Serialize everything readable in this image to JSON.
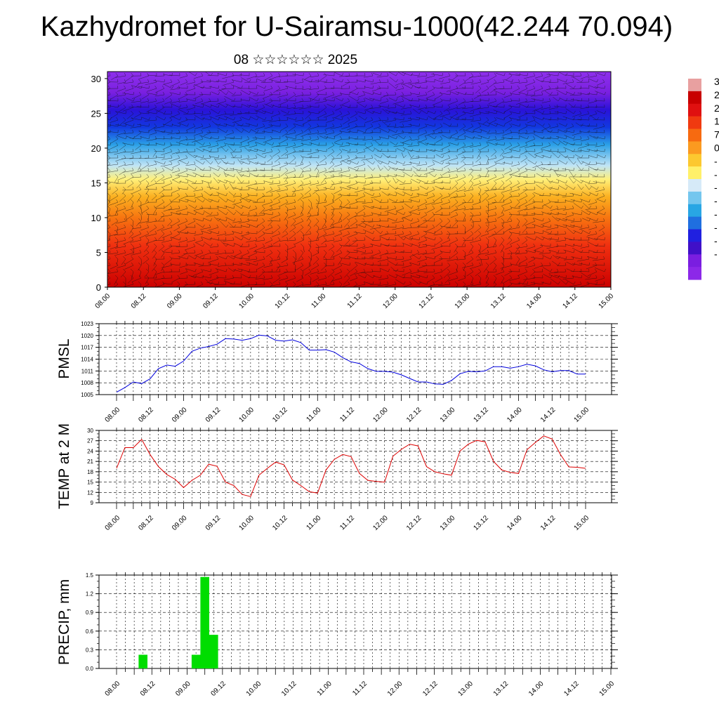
{
  "header": {
    "title": "Kazhydromet for U-Sairamsu-1000(42.244 70.094)",
    "subtitle": "08 ☆☆☆☆☆☆ 2025"
  },
  "time_labels": [
    "08.00",
    "08.12",
    "09.00",
    "09.12",
    "10.00",
    "10.12",
    "11.00",
    "11.12",
    "12.00",
    "12.12",
    "13.00",
    "13.12",
    "14.00",
    "14.12",
    "15.00"
  ],
  "colorbar": {
    "labels": [
      "3",
      "2",
      "2",
      "1",
      "7",
      "0",
      "-",
      "-",
      "-",
      "-",
      "-",
      "-",
      "-",
      "-"
    ],
    "colors": [
      "#e8a0a0",
      "#c80000",
      "#e01010",
      "#f03a10",
      "#f76a10",
      "#fb9a20",
      "#fcc830",
      "#fff06a",
      "#d6eaf8",
      "#74c6ee",
      "#28a6e4",
      "#1f6fe0",
      "#2020e0",
      "#4010c8",
      "#7a1ee0",
      "#8c28e8"
    ]
  },
  "chart_data": [
    {
      "type": "heatmap",
      "title": "",
      "x_categories": [
        "08.00",
        "08.12",
        "09.00",
        "09.12",
        "10.00",
        "10.12",
        "11.00",
        "11.12",
        "12.00",
        "12.12",
        "13.00",
        "13.12",
        "14.00",
        "14.12",
        "15.00"
      ],
      "ylim": [
        0,
        31
      ],
      "y_ticks": [
        0,
        5,
        10,
        15,
        20,
        25,
        30
      ],
      "vertical_profile": [
        {
          "level": 0,
          "color": "#cc0000"
        },
        {
          "level": 6,
          "color": "#f03010"
        },
        {
          "level": 10,
          "color": "#f77510"
        },
        {
          "level": 13,
          "color": "#fbb020"
        },
        {
          "level": 15.5,
          "color": "#fff07a"
        },
        {
          "level": 17.5,
          "color": "#bfe4f6"
        },
        {
          "level": 20.5,
          "color": "#2aa0e6"
        },
        {
          "level": 23,
          "color": "#1238e0"
        },
        {
          "level": 25.5,
          "color": "#2a12d8"
        },
        {
          "level": 28,
          "color": "#7a20e0"
        },
        {
          "level": 31,
          "color": "#8e30ec"
        }
      ],
      "overlay": "wind-barbs"
    },
    {
      "type": "line",
      "ylabel": "PMSL",
      "ylim": [
        1005,
        1023
      ],
      "y_ticks": [
        1005,
        1008,
        1011,
        1014,
        1017,
        1020,
        1023
      ],
      "x_ticks": [
        "08.00",
        "08.12",
        "09.00",
        "09.12",
        "10.00",
        "10.12",
        "11.00",
        "11.12",
        "12.00",
        "12.12",
        "13.00",
        "13.12",
        "14.00",
        "14.12",
        "15.00"
      ],
      "step_hours": 3,
      "line_color": "#0000dd",
      "values": [
        1005.6,
        1006.8,
        1008.2,
        1007.8,
        1009.0,
        1011.6,
        1012.5,
        1012.2,
        1013.5,
        1016.0,
        1016.8,
        1017.2,
        1017.8,
        1019.2,
        1019.1,
        1018.8,
        1019.2,
        1020.1,
        1019.9,
        1018.8,
        1018.6,
        1018.9,
        1018.2,
        1016.3,
        1016.3,
        1016.4,
        1015.8,
        1014.4,
        1013.3,
        1012.9,
        1011.6,
        1010.9,
        1010.9,
        1010.7,
        1010.0,
        1009.1,
        1008.2,
        1008.2,
        1007.7,
        1007.6,
        1008.6,
        1010.3,
        1010.9,
        1010.8,
        1011.0,
        1012.1,
        1012.1,
        1011.7,
        1012.1,
        1012.7,
        1012.3,
        1011.3,
        1010.8,
        1011.1,
        1011.1,
        1010.2,
        1010.2
      ]
    },
    {
      "type": "line",
      "ylabel": "TEMP at 2 M",
      "ylim": [
        9,
        30
      ],
      "y_ticks": [
        9,
        12,
        15,
        18,
        21,
        24,
        27,
        30
      ],
      "x_ticks": [
        "08.00",
        "08.12",
        "09.00",
        "09.12",
        "10.00",
        "10.12",
        "11.00",
        "11.12",
        "12.00",
        "12.12",
        "13.00",
        "13.12",
        "14.00",
        "14.12",
        "15.00"
      ],
      "step_hours": 3,
      "line_color": "#dd0000",
      "values": [
        19.0,
        25.0,
        25.0,
        27.4,
        23.0,
        19.5,
        17.2,
        15.8,
        13.4,
        15.5,
        17.0,
        20.2,
        19.6,
        15.0,
        14.0,
        11.4,
        10.8,
        17.0,
        19.0,
        20.8,
        20.0,
        15.6,
        14.0,
        12.2,
        11.8,
        18.5,
        21.6,
        23.0,
        22.4,
        17.5,
        15.5,
        15.2,
        15.0,
        22.5,
        24.5,
        26.0,
        25.5,
        19.5,
        18.0,
        17.4,
        17.0,
        24.0,
        26.0,
        27.1,
        26.7,
        21.0,
        18.5,
        17.8,
        17.5,
        24.4,
        26.5,
        28.4,
        27.5,
        23.0,
        19.4,
        19.3,
        19.0
      ]
    },
    {
      "type": "bar",
      "ylabel": "PRECIP, mm",
      "ylim": [
        0,
        1.5
      ],
      "y_ticks": [
        "0.0",
        "0.3",
        "0.6",
        "0.9",
        "1.2",
        "1.5"
      ],
      "x_ticks": [
        "08.00",
        "08.12",
        "09.00",
        "09.12",
        "10.00",
        "10.12",
        "11.00",
        "11.12",
        "12.00",
        "12.12",
        "13.00",
        "13.12",
        "14.00",
        "14.12",
        "15.00"
      ],
      "step_hours": 3,
      "bar_color": "#00dd00",
      "values": [
        0,
        0,
        0,
        0.22,
        0,
        0,
        0,
        0,
        0,
        0.22,
        1.47,
        0.54,
        0,
        0,
        0,
        0,
        0,
        0,
        0,
        0,
        0,
        0,
        0,
        0,
        0,
        0,
        0,
        0,
        0,
        0,
        0,
        0,
        0,
        0,
        0,
        0,
        0,
        0,
        0,
        0,
        0,
        0,
        0,
        0,
        0,
        0,
        0,
        0,
        0,
        0,
        0,
        0,
        0,
        0,
        0,
        0,
        0
      ]
    }
  ]
}
